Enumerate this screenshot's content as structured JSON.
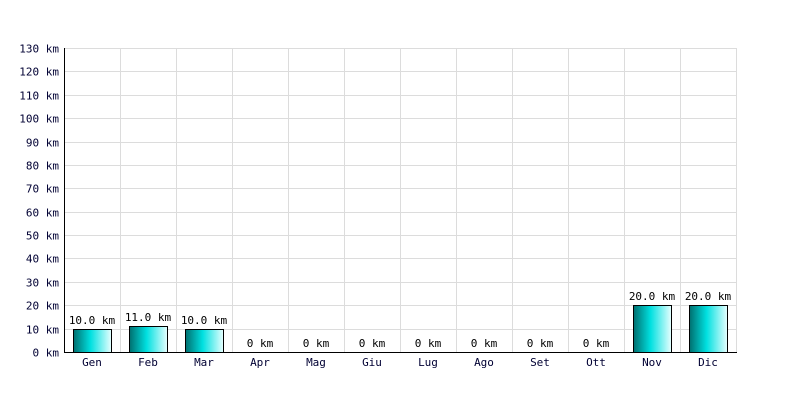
{
  "chart_data": {
    "type": "bar",
    "categories": [
      "Gen",
      "Feb",
      "Mar",
      "Apr",
      "Mag",
      "Giu",
      "Lug",
      "Ago",
      "Set",
      "Ott",
      "Nov",
      "Dic"
    ],
    "values": [
      10.0,
      11.0,
      10.0,
      0,
      0,
      0,
      0,
      0,
      0,
      0,
      20.0,
      20.0
    ],
    "data_labels": [
      "10.0 km",
      "11.0 km",
      "10.0 km",
      "0 km",
      "0 km",
      "0 km",
      "0 km",
      "0 km",
      "0 km",
      "0 km",
      "20.0 km",
      "20.0 km"
    ],
    "y_ticks": [
      0,
      10,
      20,
      30,
      40,
      50,
      60,
      70,
      80,
      90,
      100,
      110,
      120,
      130
    ],
    "y_tick_labels": [
      "0 km",
      "10 km",
      "20 km",
      "30 km",
      "40 km",
      "50 km",
      "60 km",
      "70 km",
      "80 km",
      "90 km",
      "100 km",
      "110 km",
      "120 km",
      "130 km"
    ],
    "ylim": [
      0,
      130
    ],
    "grid": true,
    "bar_color": "#00c8c8",
    "bar_color_dark": "#007878",
    "title": "",
    "xlabel": "",
    "ylabel": ""
  }
}
